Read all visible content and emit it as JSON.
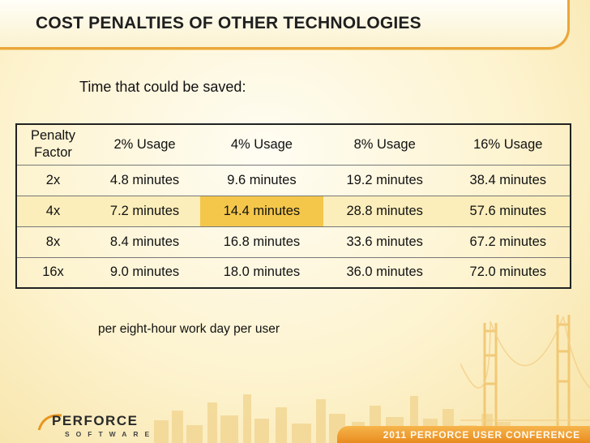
{
  "slide": {
    "title": "COST PENALTIES OF OTHER TECHNOLOGIES",
    "subtitle": "Time that could be saved:",
    "note": "per eight-hour work day per user"
  },
  "table": {
    "headers": [
      "Penalty Factor",
      "2% Usage",
      "4% Usage",
      "8% Usage",
      "16% Usage"
    ],
    "header_lines": [
      "Penalty",
      "Factor"
    ],
    "rows": [
      [
        "2x",
        "4.8 minutes",
        "9.6 minutes",
        "19.2 minutes",
        "38.4 minutes"
      ],
      [
        "4x",
        "7.2 minutes",
        "14.4 minutes",
        "28.8 minutes",
        "57.6 minutes"
      ],
      [
        "8x",
        "8.4 minutes",
        "16.8 minutes",
        "33.6 minutes",
        "67.2 minutes"
      ],
      [
        "16x",
        "9.0 minutes",
        "18.0 minutes",
        "36.0 minutes",
        "72.0 minutes"
      ]
    ]
  },
  "footer": {
    "logo_main": "PERFORCE",
    "logo_sub": "SOFTWARE",
    "conference": "2011 PERFORCE USER CONFERENCE"
  },
  "colors": {
    "accent": "#eaa638",
    "highlight_row": "#fbeebb",
    "highlight_cell": "#f4c74a",
    "banner": "#e88b1f"
  }
}
